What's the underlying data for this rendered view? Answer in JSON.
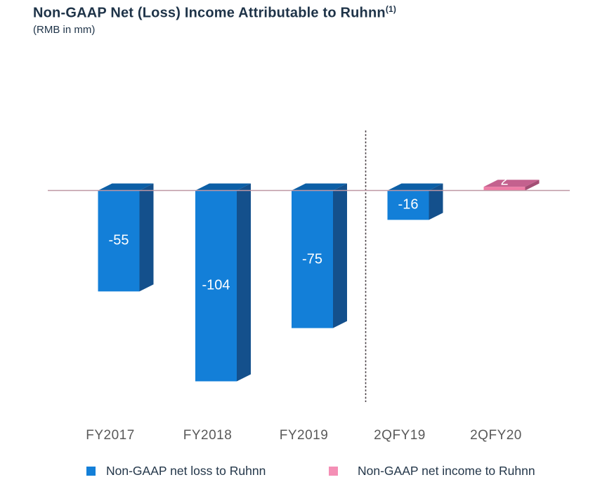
{
  "header": {
    "title": "Non-GAAP Net (Loss) Income Attributable to Ruhnn",
    "title_superscript": "(1)",
    "subtitle": "(RMB in mm)"
  },
  "chart_data": {
    "type": "bar",
    "title": "Non-GAAP Net (Loss) Income Attributable to Ruhnn(1)",
    "subtitle": "(RMB in mm)",
    "units": "RMB in mm",
    "categories": [
      "FY2017",
      "FY2018",
      "FY2019",
      "2QFY19",
      "2QFY20"
    ],
    "values": [
      -55,
      -104,
      -75,
      -16,
      2
    ],
    "data_labels": [
      "-55",
      "-104",
      "-75",
      "-16",
      "2"
    ],
    "style": "3d-bars",
    "zero_line": true,
    "grid": false,
    "divider_after_category": "FY2019",
    "ylim": [
      -110,
      15
    ],
    "colors": {
      "loss_front": "#137FD8",
      "loss_top": "#0C5FA6",
      "loss_side": "#14508C",
      "income_front": "#F07CA6",
      "income_top": "#C4618E",
      "income_side": "#A34E74",
      "zero_line": "#BE97A4",
      "divider": "#473E43",
      "value_label": "#FFFFFF",
      "category_label": "#595959"
    },
    "legend_position": "bottom",
    "legend": [
      {
        "label": "Non-GAAP net loss to Ruhnn",
        "color": "#137FD8"
      },
      {
        "label": "Non-GAAP net income to Ruhnn",
        "color": "#F48FB5"
      }
    ]
  }
}
